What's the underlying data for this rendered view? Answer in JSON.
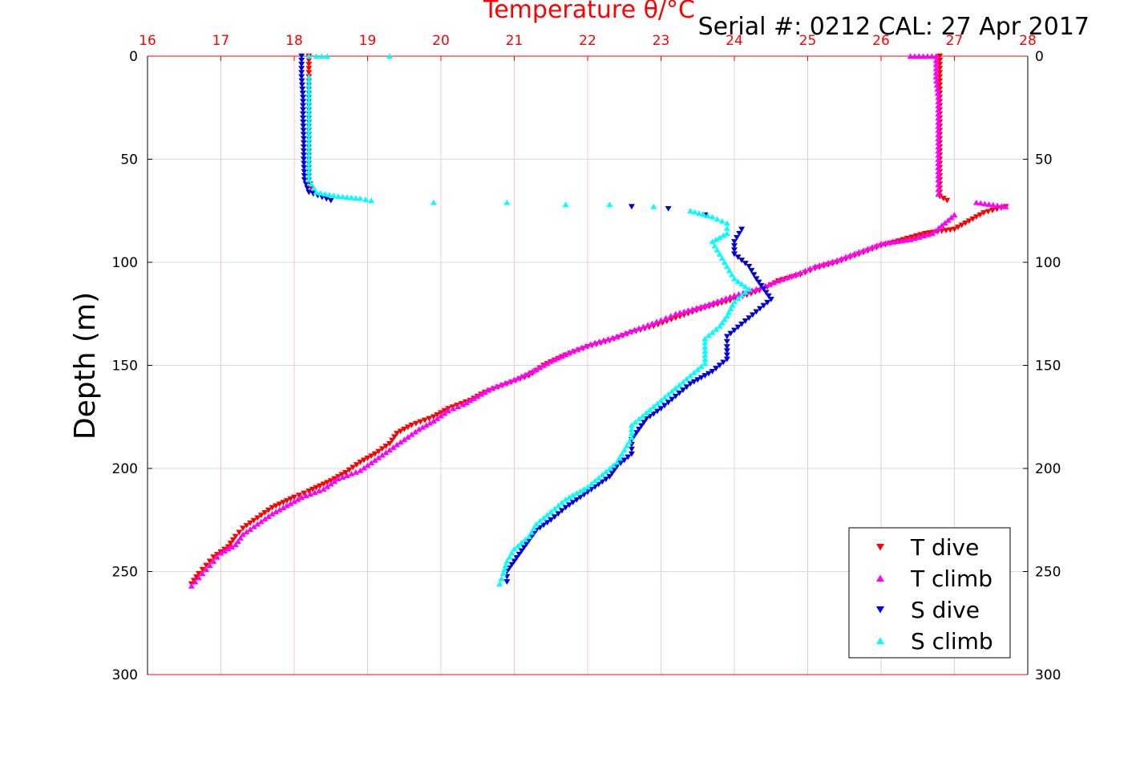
{
  "chart_data": {
    "type": "scatter",
    "title": "Temperature θ/°C",
    "top_right_text": "Serial #: 0212  CAL: 27 Apr 2017",
    "ylabel": "Depth (m)",
    "xlim": [
      16,
      28
    ],
    "ylim": [
      0,
      300
    ],
    "y_inverted": true,
    "x_ticks": [
      "16",
      "17",
      "18",
      "19",
      "20",
      "21",
      "22",
      "23",
      "24",
      "25",
      "26",
      "27",
      "28"
    ],
    "y_ticks": [
      "0",
      "50",
      "100",
      "150",
      "200",
      "250",
      "300"
    ],
    "grid": true,
    "legend_position": "bottom-right",
    "colors": {
      "axis_top": "#ff0000",
      "grid": "#f4c8c8",
      "t_dive": "#ff0000",
      "t_climb": "#ff00ff",
      "s_dive": "#0000dd",
      "s_climb": "#00ffff"
    },
    "series": [
      {
        "name": "T dive",
        "marker": "triangle-down",
        "points": [
          [
            18.2,
            0
          ],
          [
            18.2,
            10
          ],
          [
            18.2,
            20
          ],
          [
            18.2,
            30
          ],
          [
            18.2,
            40
          ],
          [
            18.2,
            50
          ],
          [
            18.2,
            60
          ],
          [
            18.25,
            66
          ],
          [
            26.8,
            0
          ],
          [
            26.8,
            10
          ],
          [
            26.8,
            20
          ],
          [
            26.8,
            30
          ],
          [
            26.8,
            40
          ],
          [
            26.8,
            50
          ],
          [
            26.8,
            60
          ],
          [
            26.8,
            68
          ],
          [
            26.9,
            70
          ],
          [
            27.7,
            73
          ],
          [
            27.4,
            76
          ],
          [
            27.2,
            80
          ],
          [
            27.0,
            84
          ],
          [
            26.6,
            86
          ],
          [
            26.3,
            89
          ],
          [
            26.0,
            92
          ],
          [
            25.7,
            96
          ],
          [
            25.4,
            100
          ],
          [
            25.1,
            103
          ],
          [
            24.9,
            106
          ],
          [
            24.6,
            109
          ],
          [
            24.4,
            113
          ],
          [
            24.0,
            118
          ],
          [
            23.6,
            122
          ],
          [
            23.2,
            127
          ],
          [
            22.9,
            131
          ],
          [
            22.6,
            134
          ],
          [
            22.3,
            138
          ],
          [
            22.0,
            141
          ],
          [
            21.7,
            145
          ],
          [
            21.4,
            150
          ],
          [
            21.2,
            155
          ],
          [
            20.9,
            159
          ],
          [
            20.6,
            163
          ],
          [
            20.4,
            167
          ],
          [
            20.1,
            171
          ],
          [
            19.9,
            175
          ],
          [
            19.6,
            179
          ],
          [
            19.4,
            183
          ],
          [
            19.3,
            188
          ],
          [
            19.1,
            193
          ],
          [
            18.9,
            197
          ],
          [
            18.7,
            202
          ],
          [
            18.5,
            206
          ],
          [
            18.2,
            211
          ],
          [
            18.0,
            214
          ],
          [
            17.7,
            219
          ],
          [
            17.5,
            224
          ],
          [
            17.3,
            229
          ],
          [
            17.2,
            233
          ],
          [
            17.1,
            238
          ],
          [
            16.9,
            243
          ],
          [
            16.8,
            247
          ],
          [
            16.7,
            251
          ],
          [
            16.6,
            256
          ]
        ]
      },
      {
        "name": "T climb",
        "marker": "triangle-up",
        "points": [
          [
            26.4,
            0
          ],
          [
            26.75,
            0
          ],
          [
            26.75,
            10
          ],
          [
            26.78,
            20
          ],
          [
            26.78,
            30
          ],
          [
            26.78,
            40
          ],
          [
            26.78,
            50
          ],
          [
            26.78,
            60
          ],
          [
            26.78,
            67
          ],
          [
            27.3,
            71
          ],
          [
            27.7,
            73
          ],
          [
            27.0,
            77
          ],
          [
            26.7,
            86
          ],
          [
            26.4,
            89
          ],
          [
            26.0,
            91
          ],
          [
            25.7,
            95
          ],
          [
            25.4,
            99
          ],
          [
            25.1,
            102
          ],
          [
            24.9,
            105
          ],
          [
            24.6,
            109
          ],
          [
            24.3,
            113
          ],
          [
            24.0,
            116
          ],
          [
            23.6,
            121
          ],
          [
            23.2,
            125
          ],
          [
            23.0,
            128
          ],
          [
            22.7,
            132
          ],
          [
            22.4,
            136
          ],
          [
            22.1,
            139
          ],
          [
            21.8,
            143
          ],
          [
            21.5,
            148
          ],
          [
            21.3,
            152
          ],
          [
            21.0,
            157
          ],
          [
            20.7,
            161
          ],
          [
            20.5,
            165
          ],
          [
            20.3,
            169
          ],
          [
            20.1,
            172
          ],
          [
            19.9,
            177
          ],
          [
            19.7,
            181
          ],
          [
            19.5,
            186
          ],
          [
            19.3,
            191
          ],
          [
            19.1,
            196
          ],
          [
            18.9,
            201
          ],
          [
            18.6,
            205
          ],
          [
            18.4,
            210
          ],
          [
            18.1,
            214
          ],
          [
            17.9,
            218
          ],
          [
            17.7,
            222
          ],
          [
            17.5,
            227
          ],
          [
            17.3,
            232
          ],
          [
            17.2,
            237
          ],
          [
            17.0,
            241
          ],
          [
            16.9,
            245
          ],
          [
            16.8,
            249
          ],
          [
            16.7,
            253
          ],
          [
            16.6,
            257
          ]
        ]
      },
      {
        "name": "S dive",
        "marker": "triangle-down",
        "points": [
          [
            18.1,
            0
          ],
          [
            18.1,
            10
          ],
          [
            18.12,
            20
          ],
          [
            18.12,
            30
          ],
          [
            18.13,
            40
          ],
          [
            18.13,
            50
          ],
          [
            18.14,
            60
          ],
          [
            18.2,
            66
          ],
          [
            18.5,
            70
          ],
          [
            22.6,
            73
          ],
          [
            23.1,
            74
          ],
          [
            23.6,
            77
          ],
          [
            24.1,
            84
          ],
          [
            24.0,
            90
          ],
          [
            24.0,
            96
          ],
          [
            24.2,
            102
          ],
          [
            24.3,
            108
          ],
          [
            24.4,
            113
          ],
          [
            24.5,
            118
          ],
          [
            24.3,
            124
          ],
          [
            24.1,
            130
          ],
          [
            23.9,
            136
          ],
          [
            23.9,
            141
          ],
          [
            23.9,
            147
          ],
          [
            23.7,
            153
          ],
          [
            23.4,
            159
          ],
          [
            23.2,
            165
          ],
          [
            23.0,
            171
          ],
          [
            22.8,
            176
          ],
          [
            22.7,
            181
          ],
          [
            22.6,
            186
          ],
          [
            22.6,
            193
          ],
          [
            22.4,
            199
          ],
          [
            22.3,
            204
          ],
          [
            22.1,
            209
          ],
          [
            21.9,
            214
          ],
          [
            21.7,
            219
          ],
          [
            21.5,
            225
          ],
          [
            21.3,
            230
          ],
          [
            21.2,
            235
          ],
          [
            21.1,
            240
          ],
          [
            21.0,
            245
          ],
          [
            20.9,
            250
          ],
          [
            20.9,
            255
          ]
        ]
      },
      {
        "name": "S climb",
        "marker": "triangle-up",
        "points": [
          [
            18.2,
            0
          ],
          [
            18.3,
            0
          ],
          [
            18.45,
            0
          ],
          [
            19.3,
            0
          ],
          [
            18.2,
            10
          ],
          [
            18.2,
            20
          ],
          [
            18.2,
            30
          ],
          [
            18.2,
            40
          ],
          [
            18.2,
            50
          ],
          [
            18.2,
            60
          ],
          [
            18.3,
            66
          ],
          [
            18.6,
            68
          ],
          [
            18.9,
            69
          ],
          [
            19.05,
            70
          ],
          [
            19.9,
            71
          ],
          [
            20.9,
            71
          ],
          [
            21.7,
            72
          ],
          [
            22.3,
            72
          ],
          [
            22.9,
            73
          ],
          [
            23.4,
            75
          ],
          [
            23.7,
            78
          ],
          [
            23.9,
            81
          ],
          [
            23.9,
            86
          ],
          [
            23.7,
            90
          ],
          [
            23.8,
            96
          ],
          [
            23.9,
            102
          ],
          [
            24.0,
            108
          ],
          [
            24.2,
            113
          ],
          [
            24.0,
            119
          ],
          [
            23.9,
            126
          ],
          [
            23.8,
            131
          ],
          [
            23.6,
            137
          ],
          [
            23.6,
            143
          ],
          [
            23.6,
            149
          ],
          [
            23.4,
            155
          ],
          [
            23.2,
            161
          ],
          [
            23.0,
            167
          ],
          [
            22.8,
            173
          ],
          [
            22.6,
            179
          ],
          [
            22.6,
            185
          ],
          [
            22.5,
            191
          ],
          [
            22.4,
            197
          ],
          [
            22.2,
            203
          ],
          [
            22.0,
            209
          ],
          [
            21.7,
            215
          ],
          [
            21.5,
            221
          ],
          [
            21.3,
            227
          ],
          [
            21.2,
            233
          ],
          [
            21.0,
            239
          ],
          [
            20.9,
            245
          ],
          [
            20.85,
            251
          ],
          [
            20.8,
            256
          ]
        ]
      }
    ]
  }
}
